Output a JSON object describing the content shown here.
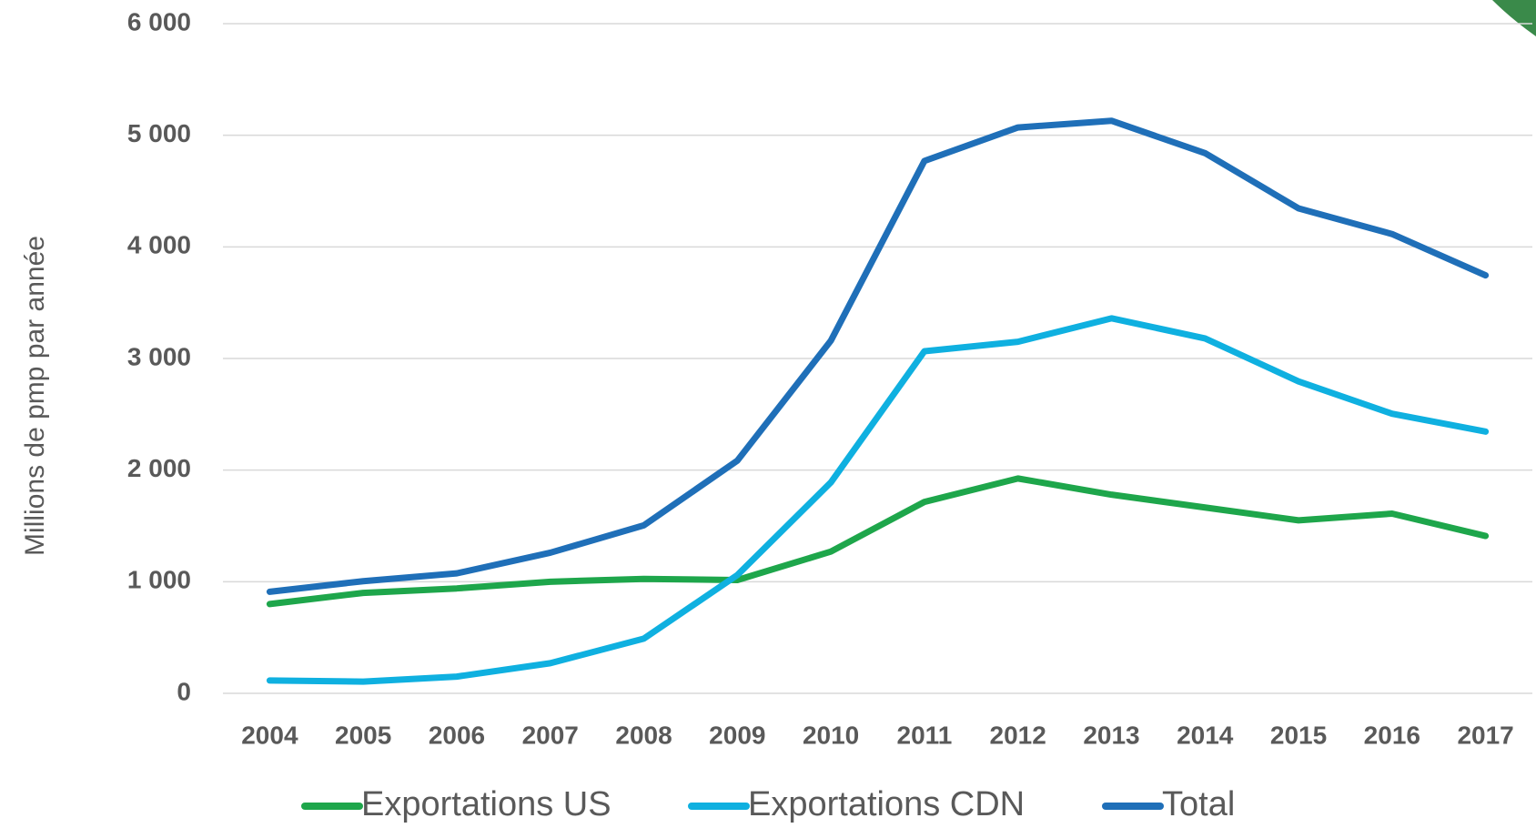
{
  "chart_data": {
    "type": "line",
    "y_label": "Millions de pmp par année",
    "categories": [
      "2004",
      "2005",
      "2006",
      "2007",
      "2008",
      "2009",
      "2010",
      "2011",
      "2012",
      "2013",
      "2014",
      "2015",
      "2016",
      "2017"
    ],
    "series": [
      {
        "name": "Exportations US",
        "color": "#1ea64b",
        "values": [
          800,
          900,
          940,
          1000,
          1025,
          1015,
          1270,
          1715,
          1925,
          1780,
          1665,
          1550,
          1610,
          1410
        ]
      },
      {
        "name": "Exportations CDN",
        "color": "#0fb0e0",
        "values": [
          115,
          105,
          150,
          270,
          490,
          1060,
          1890,
          3065,
          3150,
          3360,
          3180,
          2795,
          2505,
          2345
        ]
      },
      {
        "name": "Total",
        "color": "#1f6fb8",
        "values": [
          910,
          1005,
          1075,
          1260,
          1505,
          2085,
          3160,
          4770,
          5070,
          5130,
          4840,
          4345,
          4115,
          3745
        ]
      }
    ],
    "ylim": [
      0,
      6000
    ],
    "yticks": [
      0,
      {
        "value": 1000,
        "label": "1 000"
      },
      {
        "value": 2000,
        "label": "2 000"
      },
      {
        "value": 3000,
        "label": "3 000"
      },
      {
        "value": 4000,
        "label": "4 000"
      },
      {
        "value": 5000,
        "label": "5 000"
      },
      {
        "value": 6000,
        "label": "6 000"
      }
    ],
    "grid": true
  }
}
